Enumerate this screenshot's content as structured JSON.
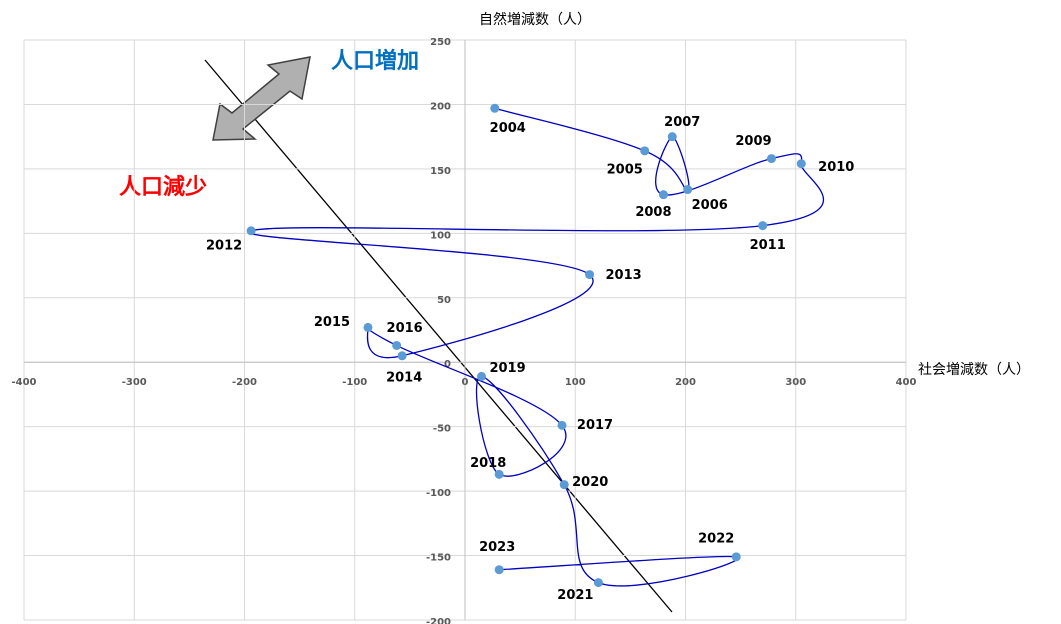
{
  "chart_data": {
    "type": "scatter",
    "x_label": "社会増減数（人）",
    "y_label": "自然増減数（人）",
    "annotations": [
      "人口増加",
      "人口減少"
    ],
    "labels": [
      "2004",
      "2005",
      "2006",
      "2007",
      "2008",
      "2009",
      "2010",
      "2011",
      "2012",
      "2013",
      "2014",
      "2015",
      "2016",
      "2017",
      "2018",
      "2019",
      "2020",
      "2021",
      "2022",
      "2023"
    ],
    "x": [
      27,
      163,
      202,
      188,
      180,
      278,
      305,
      270,
      -194,
      113,
      -57,
      -88,
      -62,
      88,
      31,
      15,
      90,
      121,
      246,
      31
    ],
    "series": [
      {
        "color": "#0000c0",
        "marker_color": "#5b9bd5",
        "values": [
          197,
          164,
          134,
          175,
          130,
          158,
          154,
          106,
          102,
          68,
          5,
          27,
          13,
          -49,
          -87,
          -11,
          -95,
          -171,
          -151,
          -161
        ]
      }
    ],
    "xlim": [
      -400,
      400
    ],
    "xticks": [
      -400,
      -300,
      -200,
      -100,
      0,
      100,
      200,
      300,
      400
    ],
    "ylim": [
      -200,
      250
    ],
    "yticks": [
      -200,
      -150,
      -100,
      -50,
      0,
      50,
      100,
      150,
      200,
      250
    ],
    "grid": true
  }
}
